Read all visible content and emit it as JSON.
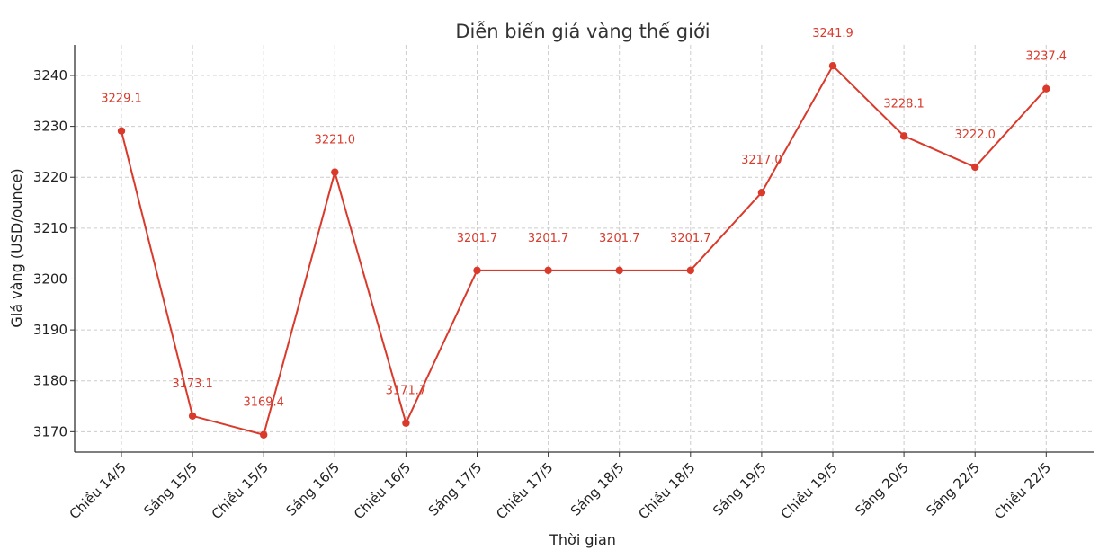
{
  "chart_data": {
    "type": "line",
    "title": "Diễn biến giá vàng thế giới",
    "xlabel": "Thời gian",
    "ylabel": "Giá vàng (USD/ounce)",
    "categories": [
      "Chiều 14/5",
      "Sáng 15/5",
      "Chiều 15/5",
      "Sáng 16/5",
      "Chiều 16/5",
      "Sáng 17/5",
      "Chiều 17/5",
      "Sáng 18/5",
      "Chiều 18/5",
      "Sáng 19/5",
      "Chiều 19/5",
      "Sáng 20/5",
      "Sáng 22/5",
      "Chiều 22/5"
    ],
    "series": [
      {
        "values": [
          3229.1,
          3173.1,
          3169.4,
          3221.0,
          3171.7,
          3201.7,
          3201.7,
          3201.7,
          3201.7,
          3217.0,
          3241.9,
          3228.1,
          3222.0,
          3237.4
        ],
        "labels": [
          "3229.1",
          "3173.1",
          "3169.4",
          "3221.0",
          "3171.7",
          "3201.7",
          "3201.7",
          "3201.7",
          "3201.7",
          "3217.0",
          "3241.9",
          "3228.1",
          "3222.0",
          "3237.4"
        ],
        "color": "#d93a2b"
      }
    ],
    "yticks": [
      3170,
      3180,
      3190,
      3200,
      3210,
      3220,
      3230,
      3240
    ],
    "ylim": [
      3166,
      3246
    ],
    "grid": true,
    "legend": "none"
  }
}
